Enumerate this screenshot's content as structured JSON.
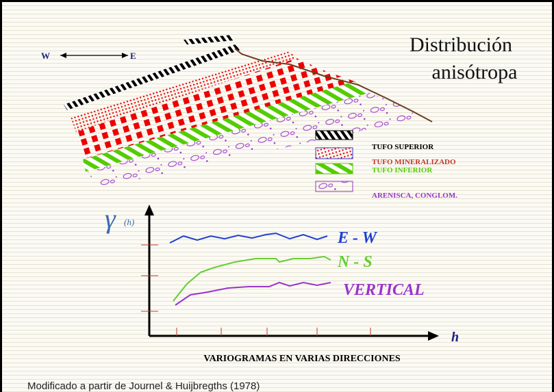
{
  "title": {
    "line1": "Distribución",
    "line2": "anisótropa"
  },
  "direction": {
    "west": "W",
    "east": "E"
  },
  "legend": [
    "TUFO SUPERIOR",
    "TUFO MINERALIZADO",
    "TUFO INFERIOR",
    "ARENISCA, CONGLOM."
  ],
  "chart": {
    "y_axis_label": "γ",
    "y_axis_suffix": "(h)",
    "x_axis_label": "h",
    "curves": [
      "E - W",
      "N - S",
      "VERTICAL"
    ],
    "caption": "VARIOGRAMAS EN VARIAS DIRECCIONES"
  },
  "footnote": "Modificado a partir de Journel & Huijbregths (1978)"
}
